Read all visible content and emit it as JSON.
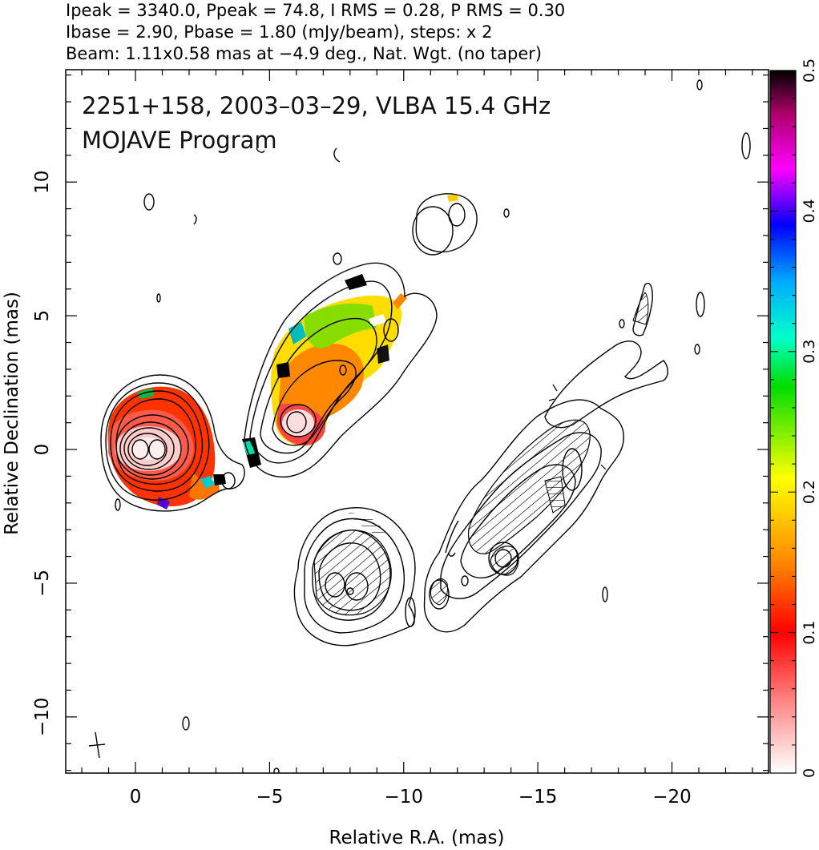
{
  "header": {
    "line1": "Ipeak = 3340.0, Ppeak = 74.8, I RMS = 0.28, P RMS = 0.30",
    "line2": "Ibase = 2.90, Pbase = 1.80 (mJy/beam), steps: x 2",
    "line3": "Beam: 1.11x0.58 mas at −4.9 deg., Nat. Wgt. (no taper)"
  },
  "chart_data": {
    "type": "heatmap",
    "title": "2251+158, 2003–03–29, VLBA 15.4 GHz",
    "subtitle": "MOJAVE Program",
    "xlabel": "Relative R.A. (mas)",
    "ylabel": "Relative Declination (mas)",
    "xlim": [
      2.6,
      -23.6
    ],
    "ylim": [
      -12.1,
      14.2
    ],
    "x_ticks": [
      {
        "value": 0,
        "label": "0"
      },
      {
        "value": -5,
        "label": "−5"
      },
      {
        "value": -10,
        "label": "−10"
      },
      {
        "value": -15,
        "label": "−15"
      },
      {
        "value": -20,
        "label": "−20"
      }
    ],
    "y_ticks": [
      {
        "value": 10,
        "label": "10"
      },
      {
        "value": 5,
        "label": "5"
      },
      {
        "value": 0,
        "label": "0"
      },
      {
        "value": -5,
        "label": "−5"
      },
      {
        "value": -10,
        "label": "−10"
      }
    ],
    "colorbar": {
      "range": [
        0,
        0.5
      ],
      "ticks": [
        {
          "value": 0,
          "label": "0"
        },
        {
          "value": 0.1,
          "label": "0.1"
        },
        {
          "value": 0.2,
          "label": "0.2"
        },
        {
          "value": 0.3,
          "label": "0.3"
        },
        {
          "value": 0.4,
          "label": "0.4"
        },
        {
          "value": 0.5,
          "label": "0.5"
        }
      ],
      "stops": [
        "#ffffff",
        "#ff0000",
        "#ff9900",
        "#ffff00",
        "#00dd00",
        "#00ffff",
        "#0000ff",
        "#ff00ff",
        "#000000"
      ]
    },
    "core": {
      "x": 0.5,
      "y": 0.0,
      "peak_mJy_per_beam": 3340.0
    },
    "contours": {
      "base_mJy_per_beam": 2.9,
      "step_factor": 2,
      "rms_mJy_per_beam": 0.28,
      "components": [
        {
          "x": 0.6,
          "y": 0.3,
          "levels": 10
        },
        {
          "x": -6.2,
          "y": 2.4,
          "levels": 5
        },
        {
          "x": -11.5,
          "y": 8.4,
          "levels": 2
        },
        {
          "x": -7.6,
          "y": -5.0,
          "levels": 4
        },
        {
          "x": -14.0,
          "y": -2.0,
          "levels": 3
        }
      ]
    },
    "polarization": {
      "peak_mJy_per_beam": 74.8,
      "base_mJy_per_beam": 1.8,
      "rms_mJy_per_beam": 0.3,
      "colored_regions": [
        {
          "x": 0.5,
          "y": 0.0,
          "fractional_pol": 0.08
        },
        {
          "x": 1.6,
          "y": -1.2,
          "fractional_pol": 0.12
        },
        {
          "x": -6.6,
          "y": 3.8,
          "fractional_pol": 0.18
        },
        {
          "x": -5.9,
          "y": 1.0,
          "fractional_pol": 0.06
        },
        {
          "x": -8.9,
          "y": 4.5,
          "fractional_pol": 0.16
        }
      ]
    },
    "beam": {
      "major_mas": 1.11,
      "minor_mas": 0.58,
      "pa_deg": -4.9,
      "weighting": "Nat. Wgt. (no taper)"
    },
    "grid": false,
    "legend": "colorbar-right"
  }
}
